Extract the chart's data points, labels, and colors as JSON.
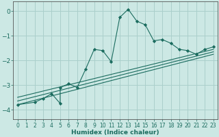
{
  "xlabel": "Humidex (Indice chaleur)",
  "bg_color": "#cce8e4",
  "grid_color": "#aacfcb",
  "line_color": "#1a6b5e",
  "marker_color": "#1a6b5e",
  "xlim": [
    -0.5,
    23.5
  ],
  "ylim": [
    -4.4,
    0.4
  ],
  "xticks": [
    0,
    1,
    2,
    3,
    4,
    5,
    6,
    7,
    8,
    9,
    10,
    11,
    12,
    13,
    14,
    15,
    16,
    17,
    18,
    19,
    20,
    21,
    22,
    23
  ],
  "yticks": [
    0,
    -1,
    -2,
    -3,
    -4
  ],
  "series1_x": [
    0,
    2,
    3,
    4,
    5,
    5,
    6,
    7,
    8,
    9,
    10,
    11,
    12,
    13,
    14,
    15,
    16,
    17,
    18,
    19,
    20,
    21,
    22,
    23
  ],
  "series1_y": [
    -3.8,
    -3.7,
    -3.55,
    -3.35,
    -3.75,
    -3.1,
    -2.95,
    -3.1,
    -2.35,
    -1.55,
    -1.6,
    -2.05,
    -0.25,
    0.08,
    -0.4,
    -0.55,
    -1.2,
    -1.15,
    -1.3,
    -1.55,
    -1.6,
    -1.75,
    -1.55,
    -1.45
  ],
  "line1_x": [
    0,
    23
  ],
  "line1_y": [
    -3.5,
    -1.55
  ],
  "line2_x": [
    0,
    23
  ],
  "line2_y": [
    -3.65,
    -1.65
  ],
  "line3_x": [
    0,
    23
  ],
  "line3_y": [
    -3.8,
    -1.75
  ]
}
